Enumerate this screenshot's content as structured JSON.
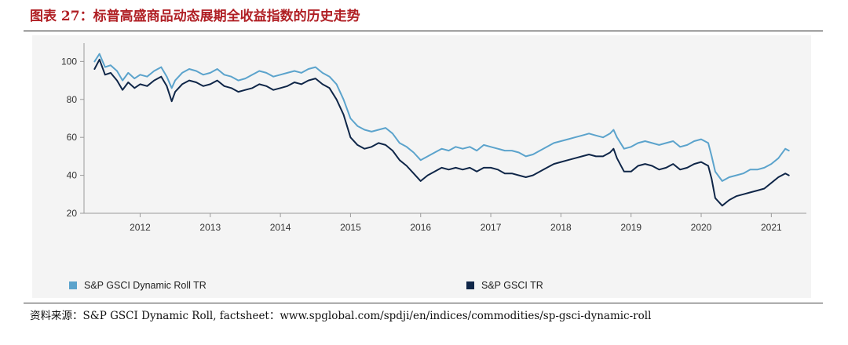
{
  "header": {
    "title": "图表 27：标普高盛商品动态展期全收益指数的历史走势"
  },
  "footer": {
    "source": "资料来源：S&P GSCI Dynamic Roll, factsheet：www.spglobal.com/spdji/en/indices/commodities/sp-gsci-dynamic-roll"
  },
  "chart_data": {
    "type": "line",
    "title": "",
    "xlabel": "",
    "ylabel": "",
    "xlim": [
      2011.2,
      2021.5
    ],
    "ylim": [
      20,
      108
    ],
    "x_ticks": [
      2012,
      2013,
      2014,
      2015,
      2016,
      2017,
      2018,
      2019,
      2020,
      2021
    ],
    "x_tick_labels": [
      "2012",
      "2013",
      "2014",
      "2015",
      "2016",
      "2017",
      "2018",
      "2019",
      "2020",
      "2021"
    ],
    "y_ticks": [
      20,
      40,
      60,
      80,
      100
    ],
    "y_tick_labels": [
      "20",
      "40",
      "60",
      "80",
      "100"
    ],
    "grid": false,
    "legend_position": "bottom",
    "series": [
      {
        "name": "S&P GSCI Dynamic Roll TR",
        "color": "#5ba3cc",
        "x": [
          2011.35,
          2011.42,
          2011.5,
          2011.58,
          2011.67,
          2011.75,
          2011.83,
          2011.92,
          2012.0,
          2012.1,
          2012.2,
          2012.3,
          2012.38,
          2012.45,
          2012.5,
          2012.6,
          2012.7,
          2012.8,
          2012.9,
          2013.0,
          2013.1,
          2013.2,
          2013.3,
          2013.4,
          2013.5,
          2013.6,
          2013.7,
          2013.8,
          2013.9,
          2014.0,
          2014.1,
          2014.2,
          2014.3,
          2014.4,
          2014.5,
          2014.6,
          2014.7,
          2014.8,
          2014.9,
          2015.0,
          2015.1,
          2015.2,
          2015.3,
          2015.4,
          2015.5,
          2015.6,
          2015.7,
          2015.8,
          2015.9,
          2016.0,
          2016.1,
          2016.2,
          2016.3,
          2016.4,
          2016.5,
          2016.6,
          2016.7,
          2016.8,
          2016.9,
          2017.0,
          2017.1,
          2017.2,
          2017.3,
          2017.4,
          2017.5,
          2017.6,
          2017.7,
          2017.8,
          2017.9,
          2018.0,
          2018.1,
          2018.2,
          2018.3,
          2018.4,
          2018.5,
          2018.6,
          2018.7,
          2018.75,
          2018.8,
          2018.9,
          2019.0,
          2019.1,
          2019.2,
          2019.3,
          2019.4,
          2019.5,
          2019.6,
          2019.7,
          2019.8,
          2019.9,
          2020.0,
          2020.1,
          2020.15,
          2020.2,
          2020.3,
          2020.4,
          2020.5,
          2020.6,
          2020.7,
          2020.8,
          2020.9,
          2021.0,
          2021.1,
          2021.2,
          2021.25
        ],
        "values": [
          100,
          104,
          97,
          98,
          95,
          90,
          94,
          91,
          93,
          92,
          95,
          97,
          92,
          86,
          90,
          94,
          96,
          95,
          93,
          94,
          96,
          93,
          92,
          90,
          91,
          93,
          95,
          94,
          92,
          93,
          94,
          95,
          94,
          96,
          97,
          94,
          92,
          88,
          80,
          70,
          66,
          64,
          63,
          64,
          65,
          62,
          57,
          55,
          52,
          48,
          50,
          52,
          54,
          53,
          55,
          54,
          55,
          53,
          56,
          55,
          54,
          53,
          53,
          52,
          50,
          51,
          53,
          55,
          57,
          58,
          59,
          60,
          61,
          62,
          61,
          60,
          62,
          64,
          60,
          54,
          55,
          57,
          58,
          57,
          56,
          57,
          58,
          55,
          56,
          58,
          59,
          57,
          50,
          42,
          37,
          39,
          40,
          41,
          43,
          43,
          44,
          46,
          49,
          54,
          53
        ]
      },
      {
        "name": "S&P GSCI TR",
        "color": "#0f2648",
        "x": [
          2011.35,
          2011.42,
          2011.5,
          2011.58,
          2011.67,
          2011.75,
          2011.83,
          2011.92,
          2012.0,
          2012.1,
          2012.2,
          2012.3,
          2012.38,
          2012.45,
          2012.5,
          2012.6,
          2012.7,
          2012.8,
          2012.9,
          2013.0,
          2013.1,
          2013.2,
          2013.3,
          2013.4,
          2013.5,
          2013.6,
          2013.7,
          2013.8,
          2013.9,
          2014.0,
          2014.1,
          2014.2,
          2014.3,
          2014.4,
          2014.5,
          2014.6,
          2014.7,
          2014.8,
          2014.9,
          2015.0,
          2015.1,
          2015.2,
          2015.3,
          2015.4,
          2015.5,
          2015.6,
          2015.7,
          2015.8,
          2015.9,
          2016.0,
          2016.1,
          2016.2,
          2016.3,
          2016.4,
          2016.5,
          2016.6,
          2016.7,
          2016.8,
          2016.9,
          2017.0,
          2017.1,
          2017.2,
          2017.3,
          2017.4,
          2017.5,
          2017.6,
          2017.7,
          2017.8,
          2017.9,
          2018.0,
          2018.1,
          2018.2,
          2018.3,
          2018.4,
          2018.5,
          2018.6,
          2018.7,
          2018.75,
          2018.8,
          2018.9,
          2019.0,
          2019.1,
          2019.2,
          2019.3,
          2019.4,
          2019.5,
          2019.6,
          2019.7,
          2019.8,
          2019.9,
          2020.0,
          2020.1,
          2020.15,
          2020.2,
          2020.3,
          2020.4,
          2020.5,
          2020.6,
          2020.7,
          2020.8,
          2020.9,
          2021.0,
          2021.1,
          2021.2,
          2021.25
        ],
        "values": [
          96,
          101,
          93,
          94,
          90,
          85,
          89,
          86,
          88,
          87,
          90,
          92,
          87,
          79,
          84,
          88,
          90,
          89,
          87,
          88,
          90,
          87,
          86,
          84,
          85,
          86,
          88,
          87,
          85,
          86,
          87,
          89,
          88,
          90,
          91,
          88,
          86,
          80,
          72,
          60,
          56,
          54,
          55,
          57,
          56,
          53,
          48,
          45,
          41,
          37,
          40,
          42,
          44,
          43,
          44,
          43,
          44,
          42,
          44,
          44,
          43,
          41,
          41,
          40,
          39,
          40,
          42,
          44,
          46,
          47,
          48,
          49,
          50,
          51,
          50,
          50,
          52,
          54,
          49,
          42,
          42,
          45,
          46,
          45,
          43,
          44,
          46,
          43,
          44,
          46,
          47,
          45,
          38,
          28,
          24,
          27,
          29,
          30,
          31,
          32,
          33,
          36,
          39,
          41,
          40
        ]
      }
    ]
  }
}
